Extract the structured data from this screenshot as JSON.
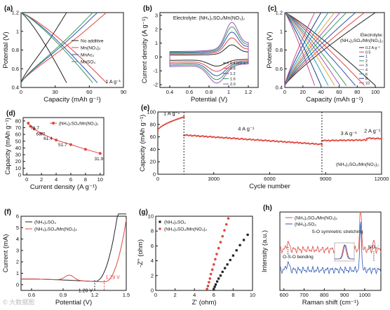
{
  "watermark": "© 大数据图",
  "panels": {
    "a": {
      "tag": "(a)",
      "xlabel": "Capacity (mAh g⁻¹)",
      "ylabel": "Potential (V)",
      "note": "1 A g⁻¹",
      "legend": [
        "No additive",
        "Mn(NO₃)₂",
        "MnAc₂",
        "MnSO₄"
      ]
    },
    "b": {
      "tag": "(b)",
      "xlabel": "Potential (V)",
      "ylabel": "Current density (A g⁻¹)",
      "title": "Electrolyte: (NH₄)₂SO₄/Mn(NO₃)₂",
      "legend": [
        "0.4 mV s⁻¹",
        "0.8",
        "1.2",
        "1.6",
        "2.0"
      ]
    },
    "c": {
      "tag": "(c)",
      "xlabel": "Capacity (mAh g⁻¹)",
      "ylabel": "Potential (V)",
      "title_line1": "Electrolyte:",
      "title_line2": "(NH₄)₂SO₄/Mn(NO₃)₂",
      "legend": [
        "0.2 A g⁻¹",
        "0.5",
        "1",
        "2",
        "3",
        "4",
        "6",
        "8",
        "10"
      ]
    },
    "d": {
      "tag": "(d)",
      "xlabel": "Current density (A g⁻¹)",
      "ylabel": "Capacity (mAh g⁻¹)",
      "legend": [
        "(NH₄)₂SO₄/Mn(NO₃)₂"
      ]
    },
    "e": {
      "tag": "(e)",
      "xlabel": "Cycle number",
      "ylabel": "Capacity (mAh g⁻¹)",
      "note": "(NH₄)₂SO₄/Mn(NO₃)₂",
      "rate_labels": [
        "1 A g⁻¹",
        "4 A g⁻¹",
        "3 A g⁻¹",
        "2 A g⁻¹"
      ]
    },
    "f": {
      "tag": "(f)",
      "xlabel": "Potential (V)",
      "ylabel": "Current (mA)",
      "legend": [
        "(NH₄)₂SO₄",
        "(NH₄)₂SO₄/Mn(NO₃)₂"
      ],
      "annotations": [
        "1.20 V",
        "1.29 V"
      ]
    },
    "g": {
      "tag": "(g)",
      "xlabel": "Z' (ohm)",
      "ylabel": "-Z'' (ohm)",
      "legend": [
        "(NH₄)₂SO₄",
        "(NH₄)₂SO₄/Mn(NO₃)₂"
      ]
    },
    "h": {
      "tag": "(h)",
      "xlabel": "Raman shift (cm⁻¹)",
      "ylabel": "Intensity (a.u.)",
      "legend": [
        "(NH₄)₂SO₄/Mn(NO₃)₂",
        "(NH₄)₂SO₄"
      ],
      "annotations": [
        "S-O symmetric stretching",
        "O-S-O bending",
        "NO₃⁻"
      ]
    }
  },
  "chart_data": [
    {
      "id": "a",
      "type": "line",
      "xlim": [
        0,
        90
      ],
      "ylim": [
        0.4,
        1.2
      ],
      "xticks": [
        0,
        30,
        60,
        90
      ],
      "yticks": [
        0.4,
        0.6,
        0.8,
        1.0,
        1.2
      ],
      "series": [
        {
          "name": "No additive",
          "color": "#222222",
          "capacity": 40
        },
        {
          "name": "Mn(NO₃)₂",
          "color": "#e0463f",
          "capacity": 75
        },
        {
          "name": "MnAc₂",
          "color": "#2e56b5",
          "capacity": 67
        },
        {
          "name": "MnSO₄",
          "color": "#3a9a5a",
          "capacity": 63
        }
      ]
    },
    {
      "id": "b",
      "type": "line",
      "xlim": [
        0.3,
        1.3
      ],
      "ylim": [
        -2.2,
        3.2
      ],
      "xticks": [
        0.4,
        0.6,
        0.8,
        1.0,
        1.2
      ],
      "yticks": [
        -2,
        -1,
        0,
        1,
        2,
        3
      ],
      "series": [
        {
          "name": "0.4 mV s⁻¹",
          "color": "#222222",
          "scale": 0.35
        },
        {
          "name": "0.8",
          "color": "#e0463f",
          "scale": 0.55
        },
        {
          "name": "1.2",
          "color": "#2e56b5",
          "scale": 0.72
        },
        {
          "name": "1.6",
          "color": "#3a9a5a",
          "scale": 0.87
        },
        {
          "name": "2.0",
          "color": "#9b59b6",
          "scale": 1.0
        }
      ]
    },
    {
      "id": "c",
      "type": "line",
      "xlim": [
        0,
        110
      ],
      "ylim": [
        0.4,
        1.2
      ],
      "xticks": [
        0,
        20,
        40,
        60,
        80,
        100
      ],
      "yticks": [
        0.4,
        0.6,
        0.8,
        1.0,
        1.2
      ],
      "series": [
        {
          "name": "0.2 A g⁻¹",
          "color": "#222222",
          "capacity": 100
        },
        {
          "name": "0.5",
          "color": "#e0463f",
          "capacity": 88
        },
        {
          "name": "1",
          "color": "#2e56b5",
          "capacity": 78
        },
        {
          "name": "2",
          "color": "#3a9a5a",
          "capacity": 68
        },
        {
          "name": "3",
          "color": "#9b59b6",
          "capacity": 61
        },
        {
          "name": "4",
          "color": "#e8a33c",
          "capacity": 55
        },
        {
          "name": "6",
          "color": "#1aa1b8",
          "capacity": 48
        },
        {
          "name": "8",
          "color": "#1a3c8c",
          "capacity": 40
        },
        {
          "name": "10",
          "color": "#c74f8f",
          "capacity": 33
        }
      ]
    },
    {
      "id": "d",
      "type": "line",
      "xlim": [
        -0.5,
        10.5
      ],
      "ylim": [
        0,
        85
      ],
      "xticks": [
        0,
        2,
        4,
        6,
        8,
        10
      ],
      "yticks": [
        0,
        10,
        20,
        30,
        40,
        50,
        60,
        70,
        80
      ],
      "series": [
        {
          "name": "(NH₄)₂SO₄/Mn(NO₃)₂",
          "color": "#e0463f",
          "x": [
            0.2,
            0.5,
            1,
            2,
            4,
            6,
            8,
            10
          ],
          "y": [
            76.7,
            72,
            68.0,
            61.4,
            51.7,
            45,
            38,
            31.9
          ]
        }
      ],
      "labels": [
        {
          "x": 0.2,
          "y": 76.7,
          "text": "76.7"
        },
        {
          "x": 1,
          "y": 68.0,
          "text": "68.0"
        },
        {
          "x": 2,
          "y": 61.4,
          "text": "61.4"
        },
        {
          "x": 4,
          "y": 51.7,
          "text": "51.7"
        },
        {
          "x": 10,
          "y": 31.9,
          "text": "31.9"
        }
      ]
    },
    {
      "id": "e",
      "type": "scatter",
      "xlim": [
        0,
        12000
      ],
      "ylim": [
        0,
        100
      ],
      "xticks": [
        0,
        3000,
        6000,
        9000,
        12000
      ],
      "yticks": [
        0,
        20,
        40,
        60,
        80,
        100
      ],
      "segments": [
        {
          "rate": "1 A g⁻¹",
          "from": 0,
          "to": 1400,
          "y0": 70,
          "y1": 92
        },
        {
          "rate": "4 A g⁻¹",
          "from": 1400,
          "to": 8800,
          "y0": 63,
          "y1": 48
        },
        {
          "rate": "3 A g⁻¹",
          "from": 8800,
          "to": 11200,
          "y0": 54,
          "y1": 55
        },
        {
          "rate": "2 A g⁻¹",
          "from": 11200,
          "to": 12000,
          "y0": 58,
          "y1": 57
        }
      ],
      "color": "#e0463f",
      "dividers": [
        1400,
        8800
      ]
    },
    {
      "id": "f",
      "type": "line",
      "xlim": [
        0.5,
        1.5
      ],
      "ylim": [
        -0.5,
        6
      ],
      "xticks": [
        0.6,
        0.9,
        1.2,
        1.5
      ],
      "yticks": [
        0,
        1,
        2,
        3,
        4,
        5,
        6
      ],
      "series": [
        {
          "name": "(NH₄)₂SO₄",
          "color": "#222222",
          "onset": 1.2
        },
        {
          "name": "(NH₄)₂SO₄/Mn(NO₃)₂",
          "color": "#e0463f",
          "onset": 1.29
        }
      ]
    },
    {
      "id": "g",
      "type": "scatter",
      "xlim": [
        0,
        10
      ],
      "ylim": [
        0,
        10
      ],
      "xticks": [
        0,
        2,
        4,
        6,
        8,
        10
      ],
      "yticks": [
        0,
        2,
        4,
        6,
        8,
        10
      ],
      "series": [
        {
          "name": "(NH₄)₂SO₄",
          "color": "#222222",
          "marker": "square",
          "x": [
            6.0,
            6.1,
            6.2,
            6.35,
            6.5,
            6.7,
            6.9,
            7.15,
            7.4,
            7.7,
            8.0,
            8.35,
            8.7,
            9.1,
            9.5
          ],
          "y": [
            0.2,
            0.5,
            0.8,
            1.2,
            1.6,
            2.0,
            2.5,
            3.0,
            3.5,
            4.1,
            4.7,
            5.4,
            6.1,
            6.8,
            7.5
          ]
        },
        {
          "name": "(NH₄)₂SO₄/Mn(NO₃)₂",
          "color": "#e0463f",
          "marker": "circle",
          "x": [
            5.3,
            5.4,
            5.5,
            5.6,
            5.7,
            5.85,
            6.0,
            6.15,
            6.3,
            6.5,
            6.7,
            6.9,
            7.1,
            7.3,
            7.5
          ],
          "y": [
            0.2,
            0.6,
            1.1,
            1.6,
            2.2,
            2.8,
            3.5,
            4.2,
            4.9,
            5.7,
            6.5,
            7.3,
            8.1,
            8.9,
            9.7
          ]
        }
      ]
    },
    {
      "id": "h",
      "type": "line",
      "xlim": [
        580,
        1080
      ],
      "ylim": [
        0,
        10
      ],
      "xticks": [
        600,
        700,
        800,
        900,
        1000
      ],
      "yticks": [],
      "series": [
        {
          "name": "(NH₄)₂SO₄/Mn(NO₃)₂",
          "color": "#e0463f",
          "offset": 5.2
        },
        {
          "name": "(NH₄)₂SO₄",
          "color": "#2e56b5",
          "offset": 2.6
        }
      ],
      "peaks": [
        980,
        620,
        1045
      ]
    }
  ]
}
